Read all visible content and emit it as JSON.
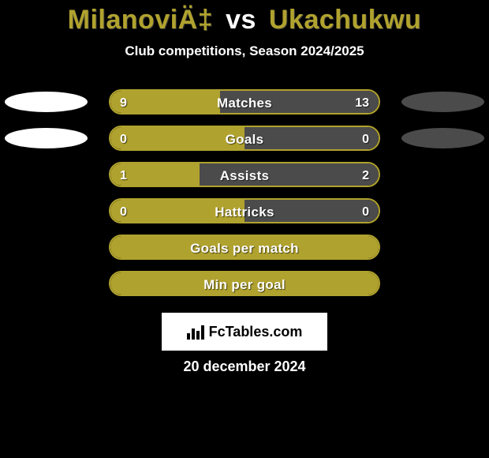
{
  "background_color": "#000000",
  "title": {
    "player1": "MilanoviÄ‡",
    "vs": "vs",
    "player2": "Ukachukwu",
    "player1_color": "#b0a22e",
    "player2_color": "#b0a22e",
    "vs_color": "#ffffff"
  },
  "subtitle": "Club competitions, Season 2024/2025",
  "chart": {
    "track_border_color": "#b0a22e",
    "track_bg_color": "#000000",
    "player1_fill_color": "#b0a22e",
    "player2_fill_color": "#4b4b4b",
    "ellipse_left_color": "#ffffff",
    "ellipse_right_color": "#4b4b4b",
    "text_color": "#ffffff",
    "rows": [
      {
        "label": "Matches",
        "left_value": "9",
        "right_value": "13",
        "left_pct": 40.9,
        "right_pct": 59.1,
        "show_left_ellipse": true,
        "show_right_ellipse": true
      },
      {
        "label": "Goals",
        "left_value": "0",
        "right_value": "0",
        "left_pct": 50,
        "right_pct": 50,
        "show_left_ellipse": true,
        "show_right_ellipse": true
      },
      {
        "label": "Assists",
        "left_value": "1",
        "right_value": "2",
        "left_pct": 33.3,
        "right_pct": 66.7,
        "show_left_ellipse": false,
        "show_right_ellipse": false
      },
      {
        "label": "Hattricks",
        "left_value": "0",
        "right_value": "0",
        "left_pct": 50,
        "right_pct": 50,
        "show_left_ellipse": false,
        "show_right_ellipse": false
      },
      {
        "label": "Goals per match",
        "left_value": "",
        "right_value": "",
        "left_pct": 100,
        "right_pct": 0,
        "show_left_ellipse": false,
        "show_right_ellipse": false
      },
      {
        "label": "Min per goal",
        "left_value": "",
        "right_value": "",
        "left_pct": 100,
        "right_pct": 0,
        "show_left_ellipse": false,
        "show_right_ellipse": false
      }
    ]
  },
  "branding": {
    "text": "FcTables.com",
    "bg_color": "#ffffff",
    "text_color": "#000000"
  },
  "date": "20 december 2024"
}
